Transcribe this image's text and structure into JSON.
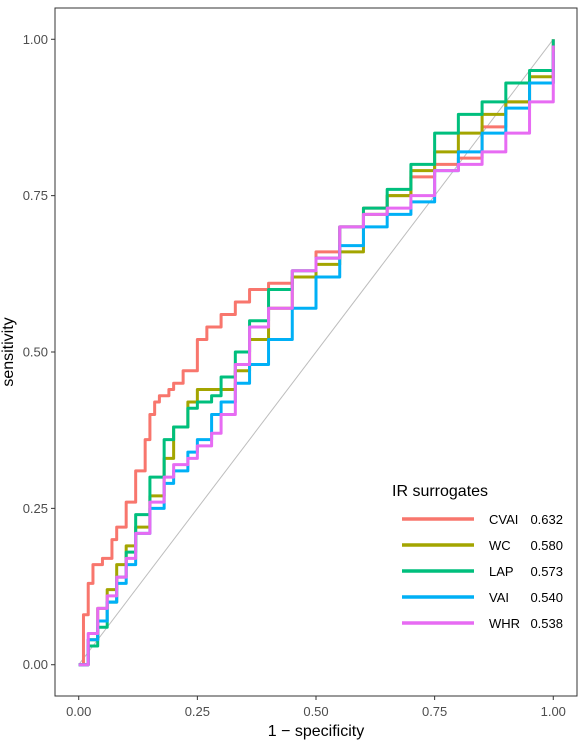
{
  "chart_data": {
    "type": "line",
    "xlabel": "1 − specificity",
    "ylabel": "sensitivity",
    "xlim": [
      -0.05,
      1.05
    ],
    "ylim": [
      -0.05,
      1.05
    ],
    "x_ticks": [
      0,
      0.25,
      0.5,
      0.75,
      1
    ],
    "x_tick_labels": [
      "0.00",
      "0.25",
      "0.50",
      "0.75",
      "1.00"
    ],
    "y_ticks": [
      0,
      0.25,
      0.5,
      0.75,
      1
    ],
    "y_tick_labels": [
      "0.00",
      "0.25",
      "0.50",
      "0.75",
      "1.00"
    ],
    "grid": false,
    "reference_line": {
      "x": [
        0,
        1
      ],
      "y": [
        0,
        1
      ],
      "color": "#bdbdbd"
    },
    "legend": {
      "title": "IR surrogates",
      "placement": "bottom-right",
      "entries": [
        {
          "name": "CVAI",
          "value": "0.632"
        },
        {
          "name": "WC",
          "value": "0.580"
        },
        {
          "name": "LAP",
          "value": "0.573"
        },
        {
          "name": "VAI",
          "value": "0.540"
        },
        {
          "name": "WHR",
          "value": "0.538"
        }
      ]
    },
    "series": [
      {
        "name": "CVAI",
        "color": "#F8766D",
        "x": [
          0,
          0.01,
          0.02,
          0.03,
          0.05,
          0.07,
          0.08,
          0.1,
          0.12,
          0.14,
          0.15,
          0.16,
          0.17,
          0.19,
          0.2,
          0.22,
          0.25,
          0.27,
          0.3,
          0.33,
          0.36,
          0.4,
          0.45,
          0.5,
          0.55,
          0.6,
          0.65,
          0.7,
          0.75,
          0.8,
          0.85,
          0.9,
          0.95,
          1.0
        ],
        "y": [
          0,
          0.08,
          0.13,
          0.16,
          0.17,
          0.2,
          0.22,
          0.26,
          0.31,
          0.36,
          0.4,
          0.42,
          0.43,
          0.44,
          0.45,
          0.47,
          0.52,
          0.54,
          0.56,
          0.58,
          0.6,
          0.61,
          0.62,
          0.66,
          0.7,
          0.73,
          0.75,
          0.78,
          0.8,
          0.81,
          0.86,
          0.9,
          0.93,
          1.0
        ]
      },
      {
        "name": "WC",
        "color": "#A3A500",
        "x": [
          0,
          0.02,
          0.04,
          0.06,
          0.08,
          0.1,
          0.12,
          0.15,
          0.18,
          0.2,
          0.23,
          0.25,
          0.27,
          0.3,
          0.33,
          0.36,
          0.4,
          0.45,
          0.5,
          0.55,
          0.6,
          0.65,
          0.7,
          0.75,
          0.8,
          0.85,
          0.9,
          0.95,
          1.0
        ],
        "y": [
          0,
          0.04,
          0.09,
          0.12,
          0.16,
          0.19,
          0.22,
          0.27,
          0.33,
          0.38,
          0.42,
          0.44,
          0.44,
          0.44,
          0.47,
          0.52,
          0.57,
          0.62,
          0.64,
          0.66,
          0.72,
          0.75,
          0.79,
          0.82,
          0.85,
          0.88,
          0.9,
          0.94,
          0.99
        ]
      },
      {
        "name": "LAP",
        "color": "#00BF7D",
        "x": [
          0,
          0.02,
          0.04,
          0.06,
          0.08,
          0.1,
          0.12,
          0.15,
          0.18,
          0.2,
          0.23,
          0.25,
          0.28,
          0.3,
          0.33,
          0.36,
          0.4,
          0.45,
          0.5,
          0.55,
          0.6,
          0.65,
          0.7,
          0.75,
          0.8,
          0.85,
          0.9,
          0.95,
          1.0
        ],
        "y": [
          0,
          0.03,
          0.06,
          0.1,
          0.14,
          0.18,
          0.24,
          0.3,
          0.36,
          0.38,
          0.41,
          0.42,
          0.43,
          0.46,
          0.5,
          0.55,
          0.6,
          0.63,
          0.65,
          0.7,
          0.73,
          0.76,
          0.8,
          0.85,
          0.88,
          0.9,
          0.93,
          0.95,
          1.0
        ]
      },
      {
        "name": "VAI",
        "color": "#00B0F6",
        "x": [
          0,
          0.02,
          0.04,
          0.06,
          0.08,
          0.1,
          0.12,
          0.15,
          0.18,
          0.2,
          0.23,
          0.25,
          0.28,
          0.3,
          0.33,
          0.36,
          0.4,
          0.45,
          0.5,
          0.55,
          0.6,
          0.65,
          0.7,
          0.75,
          0.8,
          0.85,
          0.9,
          0.95,
          1.0
        ],
        "y": [
          0,
          0.04,
          0.07,
          0.1,
          0.13,
          0.16,
          0.21,
          0.25,
          0.29,
          0.31,
          0.34,
          0.36,
          0.4,
          0.42,
          0.45,
          0.48,
          0.52,
          0.57,
          0.62,
          0.67,
          0.7,
          0.72,
          0.74,
          0.79,
          0.82,
          0.85,
          0.89,
          0.93,
          0.98
        ]
      },
      {
        "name": "WHR",
        "color": "#E76BF3",
        "x": [
          0,
          0.02,
          0.04,
          0.06,
          0.08,
          0.1,
          0.12,
          0.15,
          0.18,
          0.2,
          0.23,
          0.25,
          0.28,
          0.3,
          0.33,
          0.36,
          0.4,
          0.45,
          0.5,
          0.55,
          0.6,
          0.65,
          0.7,
          0.75,
          0.8,
          0.85,
          0.9,
          0.95,
          1.0
        ],
        "y": [
          0,
          0.05,
          0.09,
          0.11,
          0.14,
          0.17,
          0.21,
          0.26,
          0.3,
          0.32,
          0.33,
          0.35,
          0.37,
          0.4,
          0.48,
          0.54,
          0.57,
          0.63,
          0.65,
          0.7,
          0.72,
          0.73,
          0.75,
          0.79,
          0.8,
          0.82,
          0.85,
          0.9,
          0.99
        ]
      }
    ]
  }
}
